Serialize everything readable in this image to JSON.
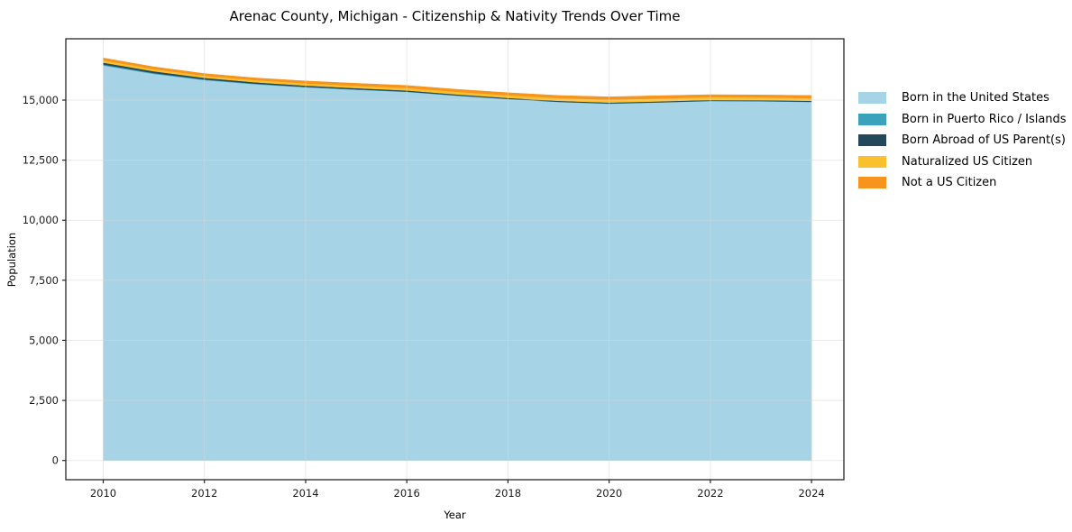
{
  "chart_data": {
    "type": "area",
    "stacked": true,
    "title": "Arenac County, Michigan - Citizenship & Nativity Trends Over Time",
    "xlabel": "Year",
    "ylabel": "Population",
    "x": [
      2010,
      2011,
      2012,
      2013,
      2014,
      2015,
      2016,
      2017,
      2018,
      2019,
      2020,
      2021,
      2022,
      2023,
      2024
    ],
    "series": [
      {
        "name": "Born in the United States",
        "color": "#a6d3e6",
        "values": [
          16440,
          16090,
          15830,
          15660,
          15530,
          15430,
          15340,
          15180,
          15040,
          14920,
          14850,
          14900,
          14960,
          14950,
          14920
        ]
      },
      {
        "name": "Born in Puerto Rico / Islands",
        "color": "#3aa3bb",
        "values": [
          40,
          35,
          30,
          25,
          20,
          18,
          15,
          12,
          10,
          10,
          10,
          10,
          10,
          10,
          10
        ]
      },
      {
        "name": "Born Abroad of US Parent(s)",
        "color": "#23485b",
        "values": [
          80,
          75,
          65,
          58,
          52,
          48,
          45,
          42,
          40,
          38,
          36,
          36,
          38,
          38,
          40
        ]
      },
      {
        "name": "Naturalized US Citizen",
        "color": "#fbc02d",
        "values": [
          95,
          92,
          88,
          90,
          95,
          100,
          105,
          108,
          110,
          112,
          118,
          120,
          115,
          112,
          112
        ]
      },
      {
        "name": "Not a US Citizen",
        "color": "#f6941e",
        "values": [
          95,
          92,
          88,
          90,
          98,
          100,
          102,
          104,
          105,
          108,
          120,
          118,
          100,
          102,
          108
        ]
      }
    ],
    "xticks": [
      2010,
      2012,
      2014,
      2016,
      2018,
      2020,
      2022,
      2024
    ],
    "yticks": [
      0,
      2500,
      5000,
      7500,
      10000,
      12500,
      15000
    ],
    "ytick_labels": [
      "0",
      "2,500",
      "5,000",
      "7,500",
      "10,000",
      "12,500",
      "15,000"
    ],
    "xlim": [
      2009.26,
      2024.64
    ],
    "ylim": [
      -800,
      17550
    ],
    "grid": true,
    "legend_position": "right-outside",
    "legend_frame": false,
    "axis_color": "#262626",
    "grid_color": "#d9d9d9",
    "text_color": "#1a1a1a"
  }
}
